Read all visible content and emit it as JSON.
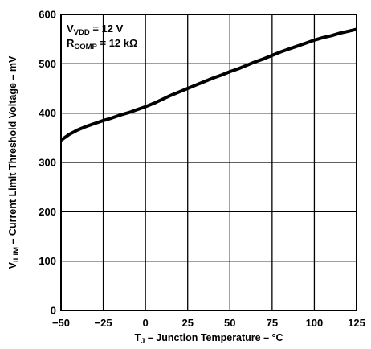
{
  "chart_data": {
    "type": "line",
    "xlabel": {
      "main": "T",
      "sub": "J",
      "rest": " – Junction Temperature – °C"
    },
    "ylabel": {
      "main": "V",
      "sub": "ILIM",
      "rest": " – Current Limit Threshold Voltage – mV"
    },
    "annotations": [
      {
        "main": "V",
        "sub": "VDD",
        "rest": " = 12 V"
      },
      {
        "main": "R",
        "sub": "COMP",
        "rest": " = 12 kΩ"
      }
    ],
    "xlim": [
      -50,
      125
    ],
    "ylim": [
      0,
      600
    ],
    "xticks": [
      "−50",
      "−25",
      "0",
      "25",
      "50",
      "75",
      "100",
      "125"
    ],
    "yticks": [
      "0",
      "100",
      "200",
      "300",
      "400",
      "500",
      "600"
    ],
    "grid": true,
    "series": [
      {
        "color": "#000000",
        "x": [
          -50,
          -45,
          -40,
          -35,
          -30,
          -25,
          -20,
          -15,
          -10,
          -5,
          0,
          5,
          10,
          15,
          20,
          25,
          30,
          35,
          40,
          45,
          50,
          55,
          60,
          65,
          70,
          75,
          80,
          85,
          90,
          95,
          100,
          105,
          110,
          115,
          120,
          125
        ],
        "y": [
          345,
          357,
          366,
          373,
          379,
          385,
          390,
          396,
          401,
          407,
          413,
          420,
          428,
          436,
          443,
          450,
          457,
          464,
          471,
          477,
          484,
          490,
          497,
          504,
          510,
          517,
          524,
          530,
          536,
          542,
          548,
          553,
          557,
          562,
          566,
          570
        ]
      }
    ]
  }
}
